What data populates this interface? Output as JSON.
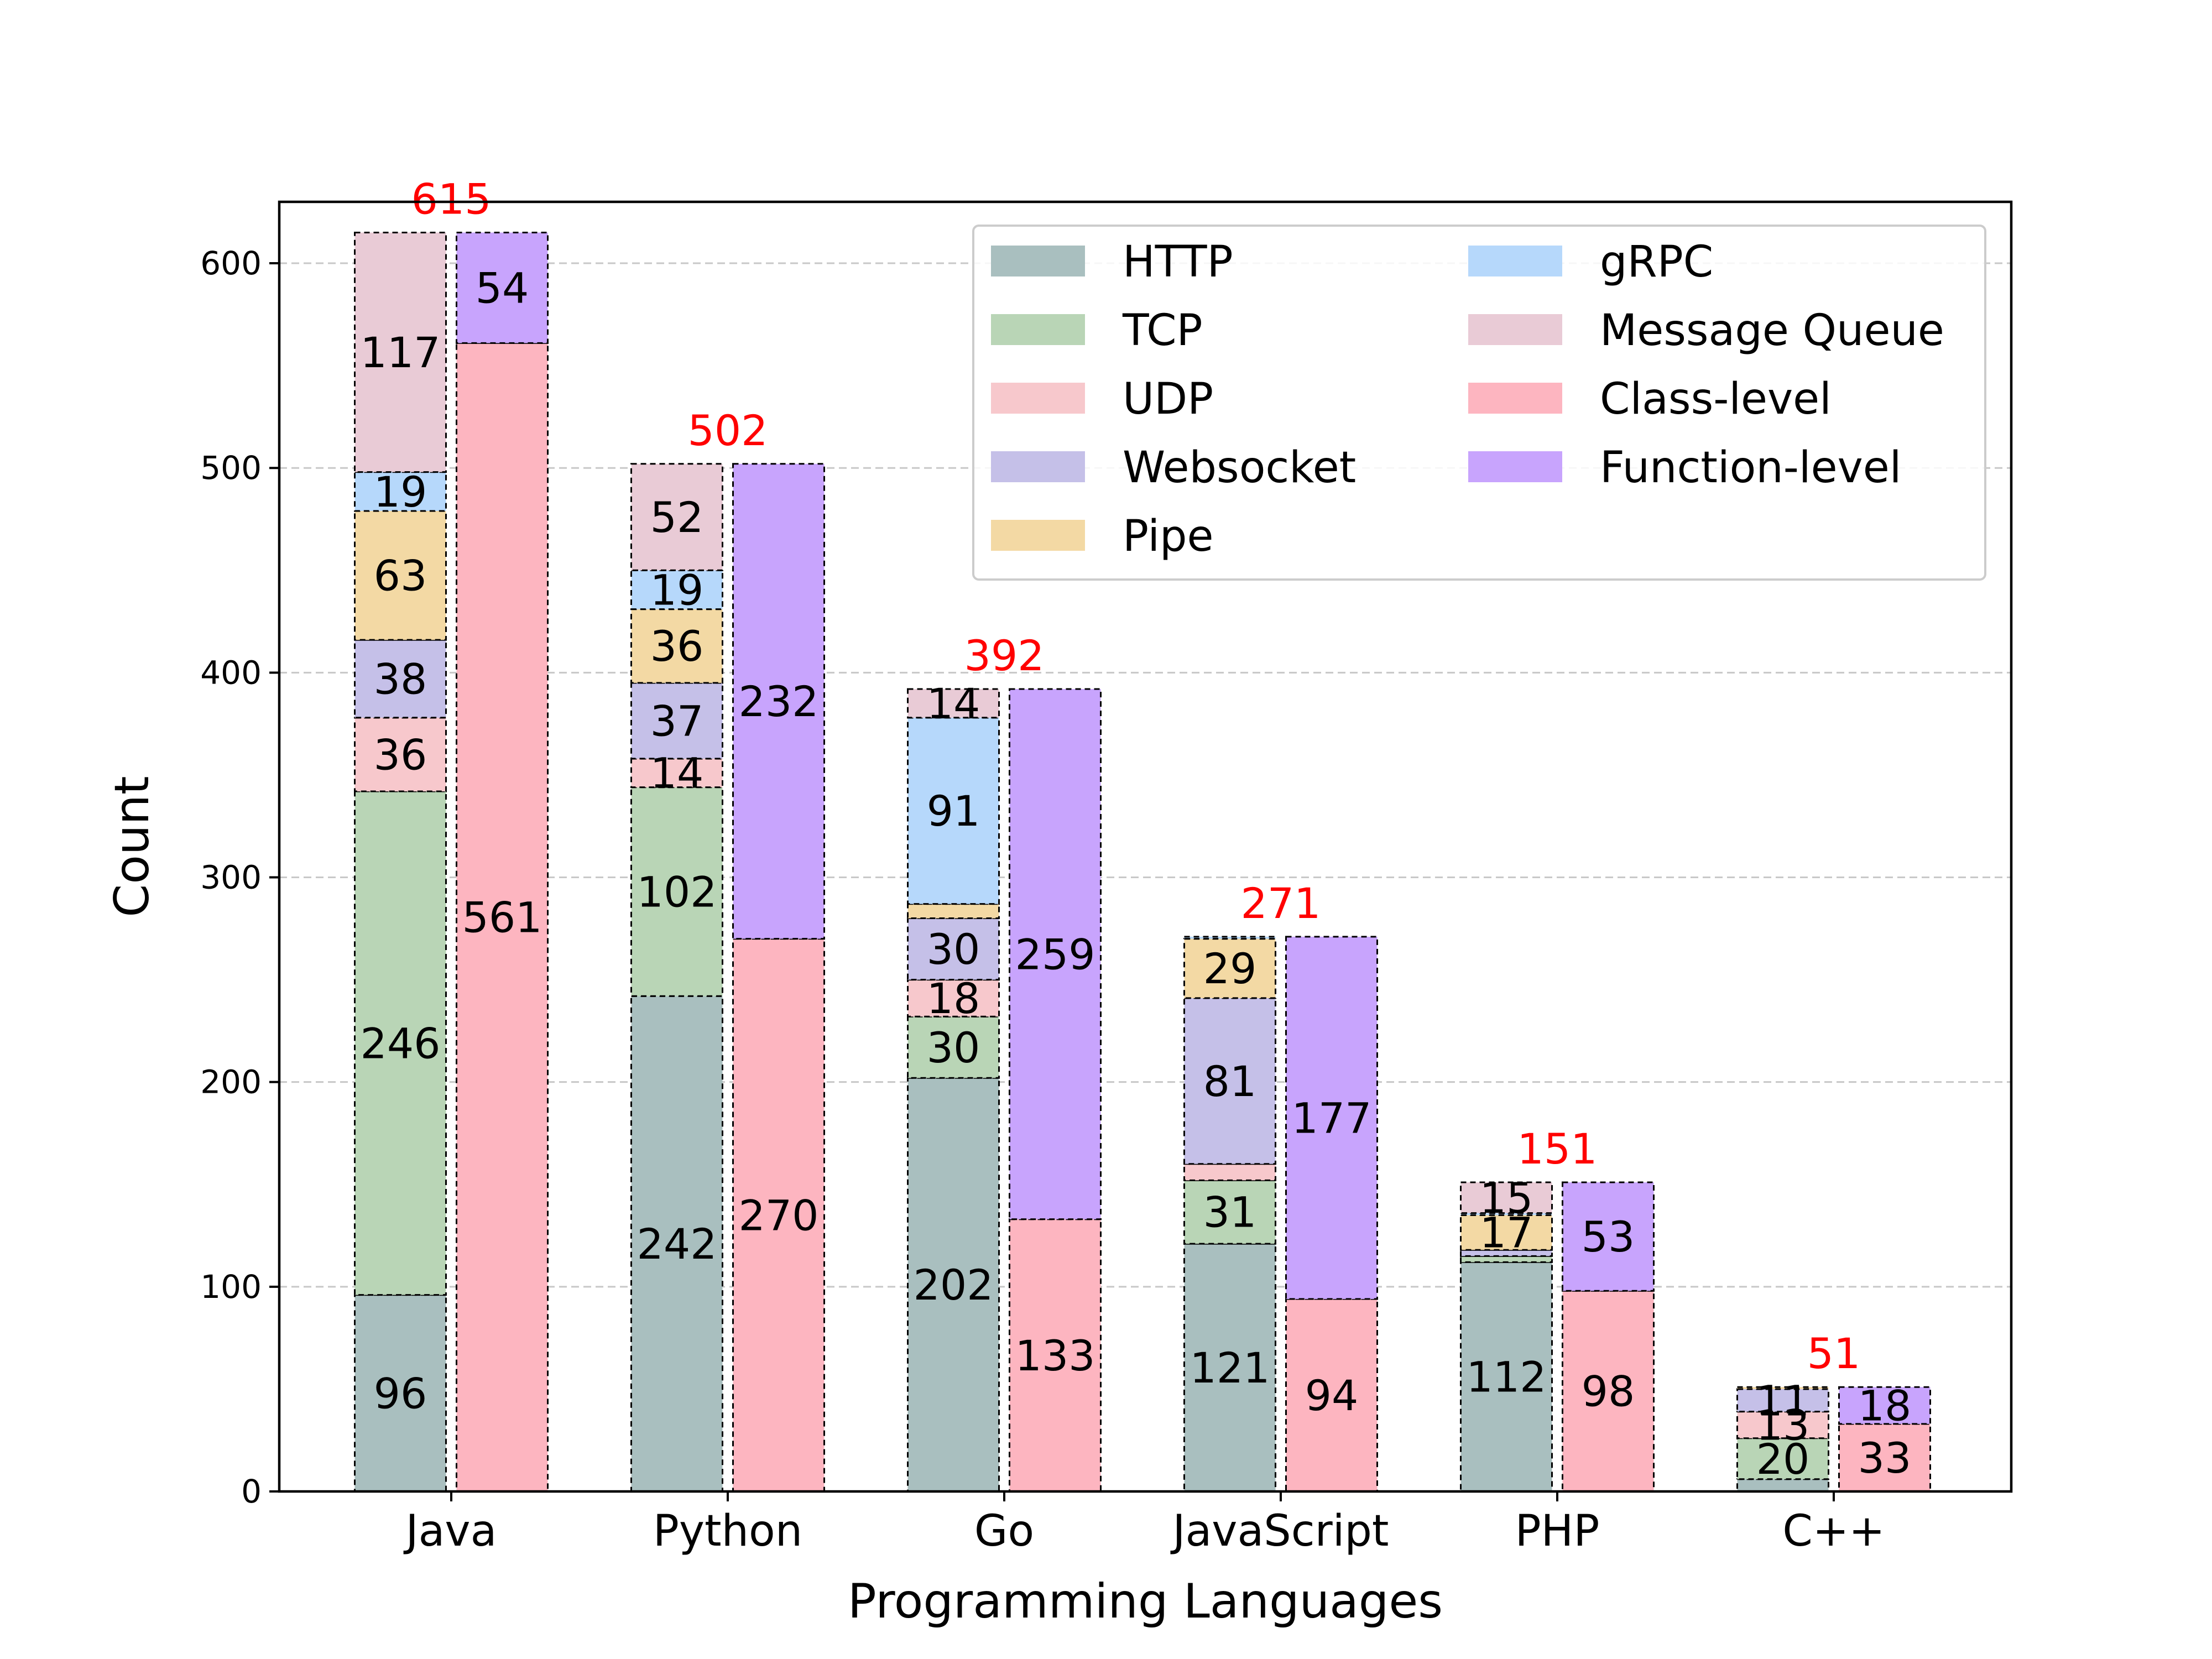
{
  "chart_data": {
    "type": "bar",
    "stacked": true,
    "grouped": true,
    "xlabel": "Programming Languages",
    "ylabel": "Count",
    "ylim": [
      0,
      630
    ],
    "yticks": [
      0,
      100,
      200,
      300,
      400,
      500,
      600
    ],
    "grid": "horizontal dashed",
    "legend_position": "top-right",
    "categories": [
      "Java",
      "Python",
      "Go",
      "JavaScript",
      "PHP",
      "C++"
    ],
    "totals": [
      615,
      502,
      392,
      271,
      151,
      51
    ],
    "groups": [
      {
        "name": "protocol",
        "series": [
          {
            "name": "HTTP",
            "color": "#a9bfbf",
            "values": [
              96,
              242,
              202,
              121,
              112,
              6
            ],
            "labels": [
              "96",
              "242",
              "202",
              "121",
              "112",
              ""
            ]
          },
          {
            "name": "TCP",
            "color": "#b9d5b6",
            "values": [
              246,
              102,
              30,
              31,
              3,
              20
            ],
            "labels": [
              "246",
              "102",
              "30",
              "31",
              "",
              "20"
            ]
          },
          {
            "name": "UDP",
            "color": "#f7c8cc",
            "values": [
              36,
              14,
              18,
              8,
              0,
              13
            ],
            "labels": [
              "36",
              "14",
              "18",
              "",
              "",
              "13"
            ]
          },
          {
            "name": "Websocket",
            "color": "#c5c0e8",
            "values": [
              38,
              37,
              30,
              81,
              3,
              11
            ],
            "labels": [
              "38",
              "37",
              "30",
              "81",
              "",
              "11"
            ]
          },
          {
            "name": "Pipe",
            "color": "#f3d9a4",
            "values": [
              63,
              36,
              7,
              29,
              17,
              1
            ],
            "labels": [
              "63",
              "36",
              "",
              "29",
              "17",
              ""
            ]
          },
          {
            "name": "gRPC",
            "color": "#b6d8fb",
            "values": [
              19,
              19,
              91,
              1,
              1,
              0
            ],
            "labels": [
              "19",
              "19",
              "91",
              "",
              "",
              ""
            ]
          },
          {
            "name": "Message Queue",
            "color": "#e9cbd6",
            "values": [
              117,
              52,
              14,
              0,
              15,
              0
            ],
            "labels": [
              "117",
              "52",
              "14",
              "",
              "15",
              ""
            ]
          }
        ]
      },
      {
        "name": "granularity",
        "series": [
          {
            "name": "Class-level",
            "color": "#fdb5c0",
            "values": [
              561,
              270,
              133,
              94,
              98,
              33
            ],
            "labels": [
              "561",
              "270",
              "133",
              "94",
              "98",
              "33"
            ]
          },
          {
            "name": "Function-level",
            "color": "#c8a4fd",
            "values": [
              54,
              232,
              259,
              177,
              53,
              18
            ],
            "labels": [
              "54",
              "232",
              "259",
              "177",
              "53",
              "18"
            ]
          }
        ]
      }
    ],
    "legend": [
      "HTTP",
      "TCP",
      "UDP",
      "Websocket",
      "Pipe",
      "gRPC",
      "Message Queue",
      "Class-level",
      "Function-level"
    ]
  }
}
